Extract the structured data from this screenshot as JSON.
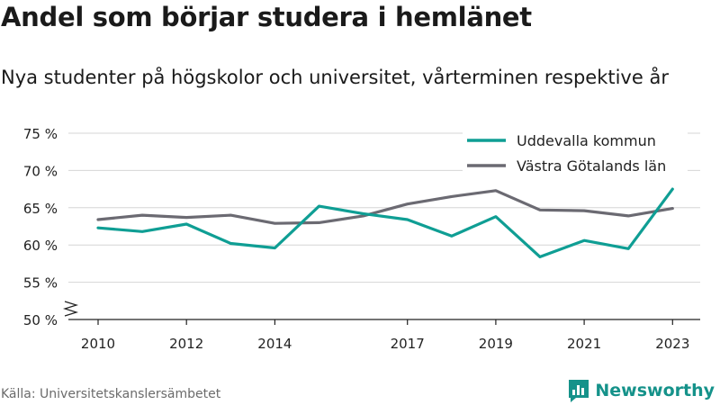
{
  "title": "Andel som börjar studera i hemlänet",
  "subtitle": "Nya studenter på högskolor och universitet, vårterminen respektive år",
  "source": "Källa: Universitetskanslersämbetet",
  "brand": "Newsworthy",
  "colors": {
    "uddevalla": "#0f9e94",
    "vastra": "#6b6a72",
    "grid": "#d6d6d6",
    "brand": "#15928a"
  },
  "chart_data": {
    "type": "line",
    "x": [
      2010,
      2011,
      2012,
      2013,
      2014,
      2015,
      2016,
      2017,
      2018,
      2019,
      2020,
      2021,
      2022,
      2023
    ],
    "x_tick_labels": [
      "2010",
      "2012",
      "2014",
      "2017",
      "2019",
      "2021",
      "2023"
    ],
    "y_tick_labels": [
      "50 %",
      "55 %",
      "60 %",
      "65 %",
      "70 %",
      "75 %"
    ],
    "ylim": [
      50,
      75
    ],
    "y_axis_break": true,
    "grid": true,
    "legend_position": "top-right",
    "series": [
      {
        "name": "Uddevalla kommun",
        "color": "#0f9e94",
        "values": [
          62.3,
          61.8,
          62.8,
          60.2,
          59.6,
          65.2,
          64.2,
          63.4,
          61.2,
          63.8,
          58.4,
          60.6,
          59.5,
          67.5
        ]
      },
      {
        "name": "Västra Götalands län",
        "color": "#6b6a72",
        "values": [
          63.4,
          64.0,
          63.7,
          64.0,
          62.9,
          63.0,
          63.9,
          65.5,
          66.5,
          67.3,
          64.7,
          64.6,
          63.9,
          64.9
        ]
      }
    ]
  }
}
